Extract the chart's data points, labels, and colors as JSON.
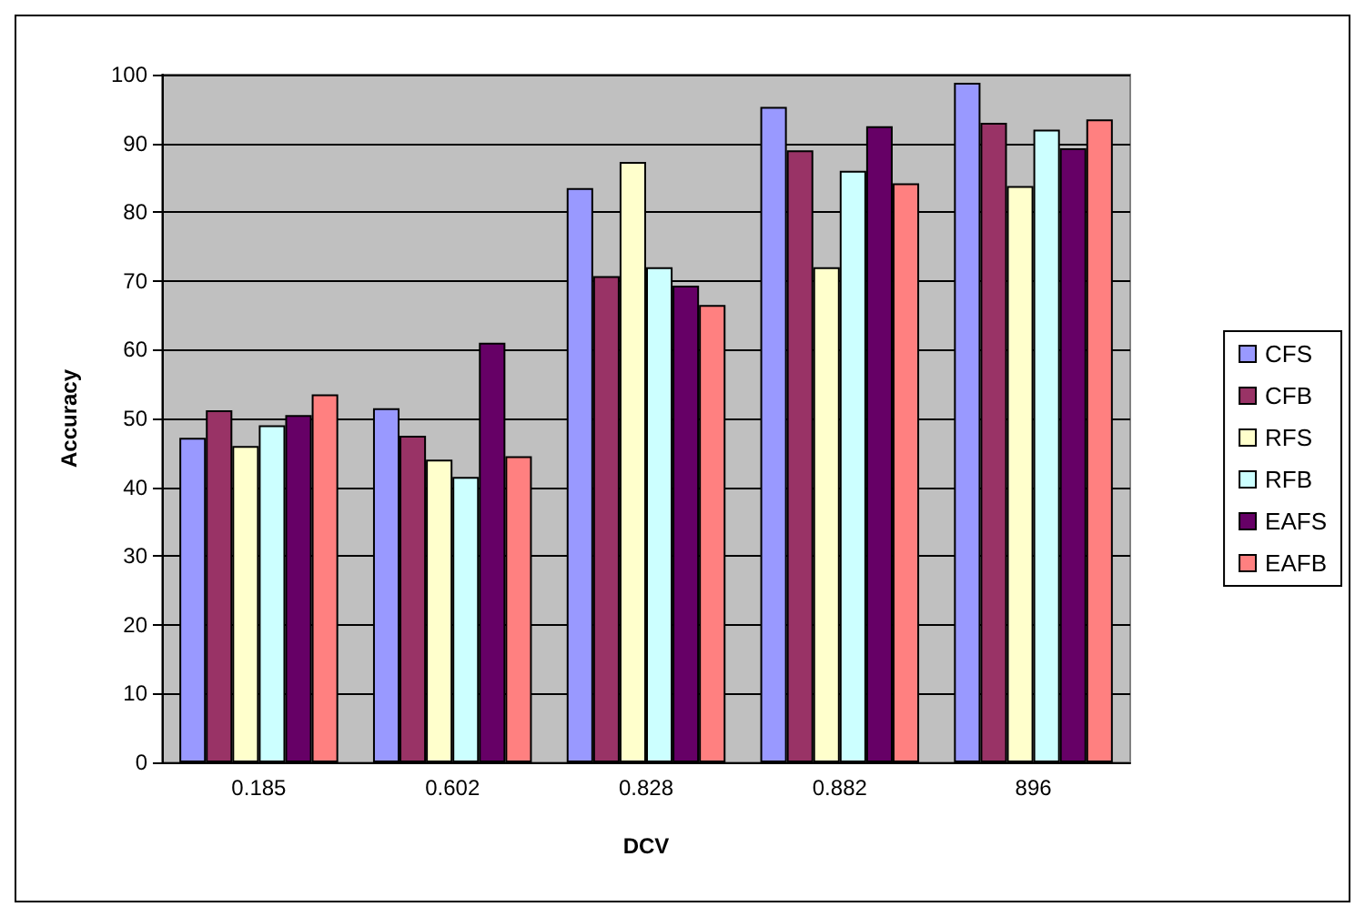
{
  "chart_data": {
    "type": "bar",
    "xlabel": "DCV",
    "ylabel": "Accuracy",
    "categories": [
      "0.185",
      "0.602",
      "0.828",
      "0.882",
      "896"
    ],
    "series": [
      {
        "name": "CFS",
        "color": "#9999ff",
        "values": [
          47.2,
          51.5,
          83.5,
          95.3,
          98.8
        ]
      },
      {
        "name": "CFB",
        "color": "#993366",
        "values": [
          51.2,
          47.5,
          70.7,
          89,
          93
        ]
      },
      {
        "name": "RFS",
        "color": "#ffffcc",
        "values": [
          46,
          44,
          87.3,
          72,
          83.8
        ]
      },
      {
        "name": "RFB",
        "color": "#ccffff",
        "values": [
          49,
          41.5,
          72,
          86,
          92
        ]
      },
      {
        "name": "EAFS",
        "color": "#660066",
        "values": [
          50.5,
          61,
          69.3,
          92.5,
          89.3
        ]
      },
      {
        "name": "EAFB",
        "color": "#ff8080",
        "values": [
          53.5,
          44.5,
          66.5,
          84.2,
          93.5
        ]
      }
    ],
    "ylim": [
      0,
      100
    ],
    "yticks": [
      0,
      10,
      20,
      30,
      40,
      50,
      60,
      70,
      80,
      90,
      100
    ],
    "grid": "y",
    "legend": "right"
  }
}
